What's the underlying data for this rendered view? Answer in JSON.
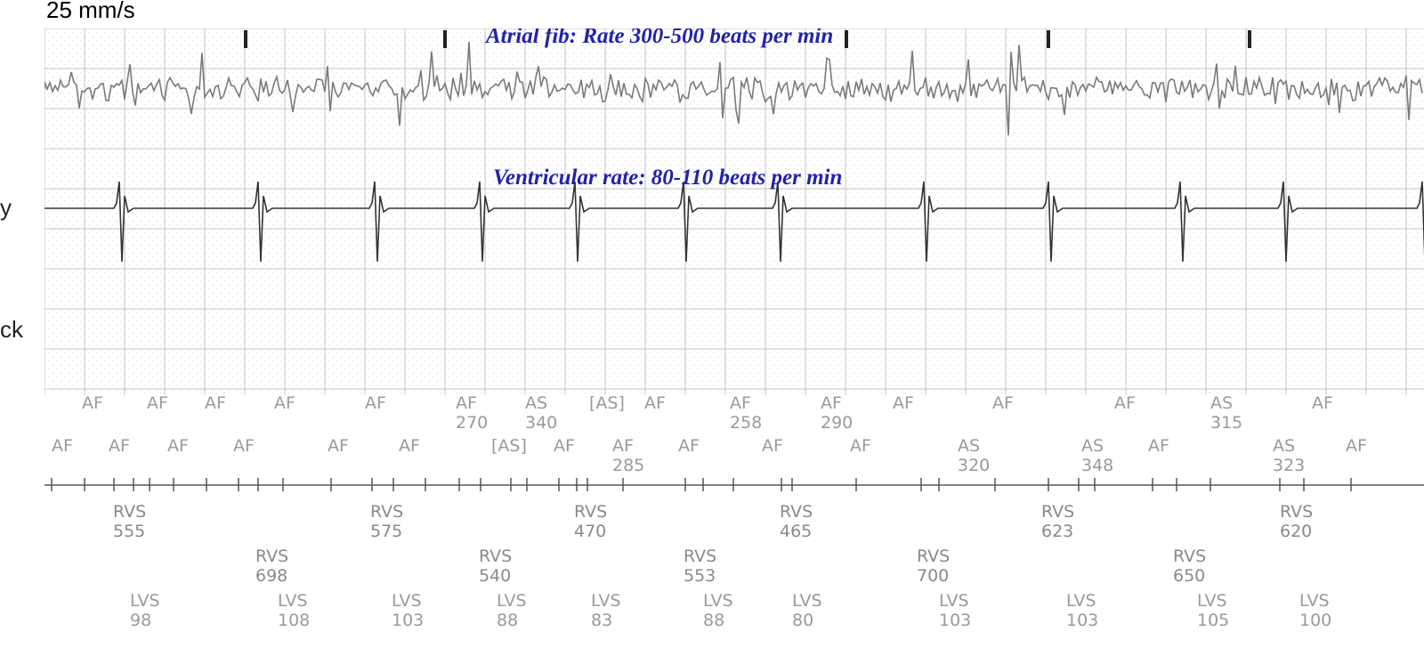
{
  "speed_label": "25 mm/s",
  "left_cut": {
    "row1": "y",
    "row2": "ck"
  },
  "atrial_label": "Atrial fib: Rate 300-500 beats per min",
  "ventricular_label": "Ventricular rate: 80-110 beats per min",
  "colors": {
    "label": "#2222aa",
    "trace_atrial": "#7a7a7a",
    "trace_ventricular": "#333333",
    "marker_text": "#9a9a9a",
    "grid": "#c4c4c4"
  },
  "rows": {
    "atrial_top": [
      {
        "label": "AF",
        "value": ""
      },
      {
        "label": "AF",
        "value": ""
      },
      {
        "label": "AF",
        "value": ""
      },
      {
        "label": "AF",
        "value": ""
      },
      {
        "label": "AF",
        "value": ""
      },
      {
        "label": "AF",
        "value": "270"
      },
      {
        "label": "AS",
        "value": "340"
      },
      {
        "label": "[AS]",
        "value": ""
      },
      {
        "label": "AF",
        "value": ""
      },
      {
        "label": "AF",
        "value": "258"
      },
      {
        "label": "AF",
        "value": "290"
      },
      {
        "label": "AF",
        "value": ""
      },
      {
        "label": "AF",
        "value": ""
      },
      {
        "label": "AF",
        "value": ""
      },
      {
        "label": "AS",
        "value": "315"
      },
      {
        "label": "AF",
        "value": ""
      }
    ],
    "atrial_bottom": [
      {
        "label": "AF",
        "value": ""
      },
      {
        "label": "AF",
        "value": ""
      },
      {
        "label": "AF",
        "value": ""
      },
      {
        "label": "AF",
        "value": ""
      },
      {
        "label": "AF",
        "value": ""
      },
      {
        "label": "AF",
        "value": ""
      },
      {
        "label": "[AS]",
        "value": ""
      },
      {
        "label": "AF",
        "value": ""
      },
      {
        "label": "AF",
        "value": "285"
      },
      {
        "label": "AF",
        "value": ""
      },
      {
        "label": "AF",
        "value": ""
      },
      {
        "label": "AF",
        "value": ""
      },
      {
        "label": "AS",
        "value": "320"
      },
      {
        "label": "AS",
        "value": "348"
      },
      {
        "label": "AF",
        "value": ""
      },
      {
        "label": "AS",
        "value": "323"
      },
      {
        "label": "AF",
        "value": ""
      }
    ],
    "rvs_top": [
      {
        "label": "RVS",
        "value": "555"
      },
      {
        "label": "RVS",
        "value": "575"
      },
      {
        "label": "RVS",
        "value": "470"
      },
      {
        "label": "RVS",
        "value": "465"
      },
      {
        "label": "RVS",
        "value": "623"
      },
      {
        "label": "RVS",
        "value": "620"
      }
    ],
    "rvs_bottom": [
      {
        "label": "RVS",
        "value": "698"
      },
      {
        "label": "RVS",
        "value": "540"
      },
      {
        "label": "RVS",
        "value": "553"
      },
      {
        "label": "RVS",
        "value": "700"
      },
      {
        "label": "RVS",
        "value": "650"
      }
    ],
    "lvs": [
      {
        "label": "LVS",
        "value": "98"
      },
      {
        "label": "LVS",
        "value": "108"
      },
      {
        "label": "LVS",
        "value": "103"
      },
      {
        "label": "LVS",
        "value": "88"
      },
      {
        "label": "LVS",
        "value": "83"
      },
      {
        "label": "LVS",
        "value": "88"
      },
      {
        "label": "LVS",
        "value": "80"
      },
      {
        "label": "LVS",
        "value": "103"
      },
      {
        "label": "LVS",
        "value": "103"
      },
      {
        "label": "LVS",
        "value": "105"
      },
      {
        "label": "LVS",
        "value": "100"
      }
    ]
  }
}
